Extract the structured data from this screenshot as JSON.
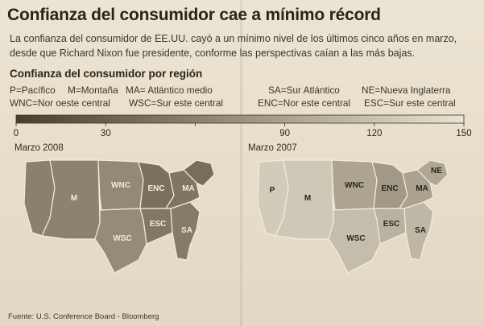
{
  "title": "Confianza del consumidor cae a mínimo récord",
  "description": "La confianza del consumidor de EE.UU. cayó a un mínimo nivel de los últimos cinco años en marzo, desde que Richard Nixon fue presidente, conforme las perspectivas caían a las más bajas.",
  "subtitle": "Confianza del consumidor por región",
  "region_legend": [
    {
      "code": "P",
      "name": "Pacífico",
      "text": "P=Pacífico"
    },
    {
      "code": "M",
      "name": "Montaña",
      "text": "M=Montaña"
    },
    {
      "code": "MA",
      "name": "Atlántico medio",
      "text": "MA= Atlántico medio"
    },
    {
      "code": "SA",
      "name": "Sur Atlántico",
      "text": "SA=Sur Atlántico"
    },
    {
      "code": "NE",
      "name": "Nueva Inglaterra",
      "text": "NE=Nueva Inglaterra"
    },
    {
      "code": "WNC",
      "name": "Nor oeste central",
      "text": "WNC=Nor oeste central"
    },
    {
      "code": "WSC",
      "name": "Sur este central",
      "text": "WSC=Sur este central"
    },
    {
      "code": "ENC",
      "name": "Nor este central",
      "text": "ENC=Nor este central"
    },
    {
      "code": "ESC",
      "name": "Sur este central",
      "text": "ESC=Sur este central"
    }
  ],
  "colors": {
    "scale_low": "#4a3f2a",
    "scale_high": "#eae3d2",
    "ink": "#2b2620"
  },
  "chart_data": {
    "type": "choropleth map",
    "scale": {
      "min": 0,
      "max": 150,
      "ticks": [
        0,
        30,
        60,
        90,
        120,
        150
      ],
      "tick_labels": [
        "0",
        "30",
        "",
        "90",
        "120",
        "150"
      ],
      "note": "darker = lower confidence"
    },
    "maps": [
      {
        "label": "Marzo 2008",
        "regions": {
          "P": 60,
          "M": 62,
          "WNC": 68,
          "WSC": 70,
          "ENC": 45,
          "ESC": 52,
          "SA": 55,
          "MA": 50,
          "NE": 42
        },
        "labeled_regions": [
          "M",
          "WNC",
          "WSC",
          "ENC",
          "ESC",
          "SA",
          "MA"
        ]
      },
      {
        "label": "Marzo 2007",
        "regions": {
          "P": 128,
          "M": 125,
          "WNC": 92,
          "WSC": 115,
          "ENC": 82,
          "ESC": 105,
          "SA": 110,
          "MA": 90,
          "NE": 95
        },
        "labeled_regions": [
          "P",
          "M",
          "WNC",
          "ENC",
          "ESC",
          "WSC",
          "SA",
          "MA",
          "NE"
        ]
      }
    ]
  },
  "source": "Fuente: U.S. Conference Board - Bloomberg"
}
